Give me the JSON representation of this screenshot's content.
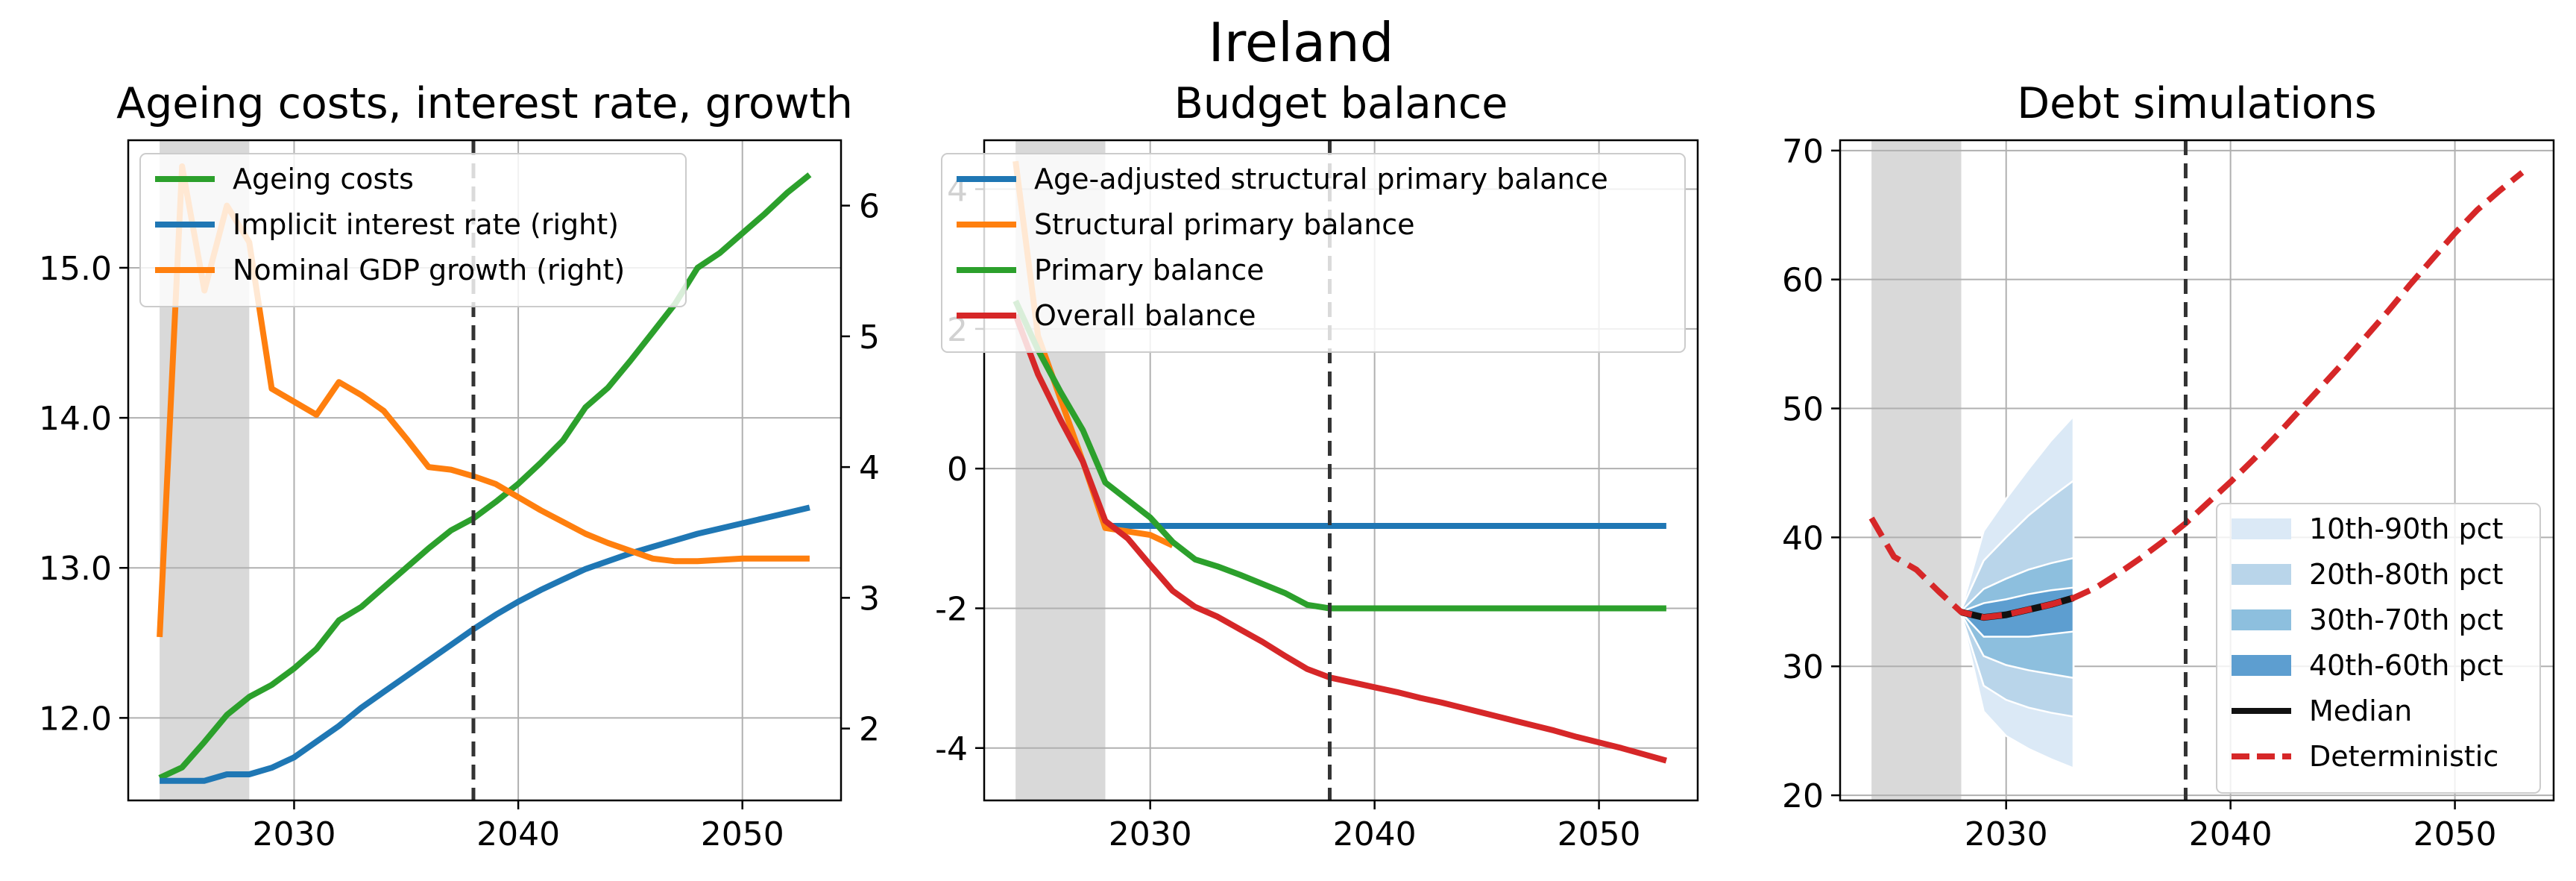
{
  "figure_title": "Ireland",
  "chart_data": [
    {
      "type": "line",
      "title": "Ageing costs, interest rate, growth",
      "xlim": [
        2022.6,
        2054.4
      ],
      "ylim": [
        11.45,
        15.85
      ],
      "y2lim": [
        1.45,
        6.5
      ],
      "xticks": [
        2030,
        2040,
        2050
      ],
      "yticks": [
        12.0,
        13.0,
        14.0,
        15.0
      ],
      "ytick_labels": [
        "12.0",
        "13.0",
        "14.0",
        "15.0"
      ],
      "y2ticks": [
        2,
        3,
        4,
        5,
        6
      ],
      "y2tick_labels": [
        "2",
        "3",
        "4",
        "5",
        "6"
      ],
      "shaded_x": [
        2024,
        2028
      ],
      "vline_x": 2038,
      "grid": true,
      "legend_position": "upper-left",
      "x": [
        2024,
        2025,
        2026,
        2027,
        2028,
        2029,
        2030,
        2031,
        2032,
        2033,
        2034,
        2035,
        2036,
        2037,
        2038,
        2039,
        2040,
        2041,
        2042,
        2043,
        2044,
        2045,
        2046,
        2047,
        2048,
        2049,
        2050,
        2051,
        2052,
        2053
      ],
      "series": [
        {
          "name": "Ageing costs",
          "axis": "left",
          "color": "#2ca02c",
          "values": [
            11.6,
            11.67,
            11.84,
            12.02,
            12.14,
            12.22,
            12.33,
            12.46,
            12.65,
            12.74,
            12.87,
            13.0,
            13.13,
            13.25,
            13.33,
            13.44,
            13.56,
            13.7,
            13.85,
            14.07,
            14.2,
            14.38,
            14.57,
            14.76,
            15.0,
            15.1,
            15.23,
            15.36,
            15.5,
            15.62
          ]
        },
        {
          "name": "Implicit interest rate (right)",
          "axis": "right",
          "color": "#1f77b4",
          "values": [
            1.6,
            1.6,
            1.6,
            1.65,
            1.65,
            1.7,
            1.78,
            1.9,
            2.02,
            2.16,
            2.28,
            2.4,
            2.52,
            2.64,
            2.76,
            2.87,
            2.97,
            3.06,
            3.14,
            3.22,
            3.28,
            3.34,
            3.39,
            3.44,
            3.49,
            3.53,
            3.57,
            3.61,
            3.65,
            3.69
          ]
        },
        {
          "name": "Nominal GDP growth (right)",
          "axis": "right",
          "color": "#ff7f0e",
          "values": [
            2.7,
            6.3,
            5.35,
            6.0,
            5.72,
            4.6,
            4.5,
            4.4,
            4.65,
            4.55,
            4.43,
            4.22,
            4.0,
            3.98,
            3.93,
            3.87,
            3.77,
            3.67,
            3.58,
            3.49,
            3.42,
            3.36,
            3.3,
            3.28,
            3.28,
            3.29,
            3.3,
            3.3,
            3.3,
            3.3
          ]
        }
      ]
    },
    {
      "type": "line",
      "title": "Budget balance",
      "xlim": [
        2022.6,
        2054.4
      ],
      "ylim": [
        -4.75,
        4.7
      ],
      "xticks": [
        2030,
        2040,
        2050
      ],
      "yticks": [
        -4,
        -2,
        0,
        2,
        4
      ],
      "ytick_labels": [
        "-4",
        "-2",
        "0",
        "2",
        "4"
      ],
      "shaded_x": [
        2024,
        2028
      ],
      "vline_x": 2038,
      "grid": true,
      "legend_position": "upper-left",
      "series": [
        {
          "name": "Age-adjusted structural primary balance",
          "color": "#1f77b4",
          "x": [
            2028,
            2029,
            2030,
            2031,
            2032,
            2033,
            2034,
            2035,
            2036,
            2037,
            2038,
            2039,
            2040,
            2041,
            2042,
            2043,
            2044,
            2045,
            2046,
            2047,
            2048,
            2049,
            2050,
            2051,
            2052,
            2053
          ],
          "values": [
            -0.82,
            -0.82,
            -0.82,
            -0.82,
            -0.82,
            -0.82,
            -0.82,
            -0.82,
            -0.82,
            -0.82,
            -0.82,
            -0.82,
            -0.82,
            -0.82,
            -0.82,
            -0.82,
            -0.82,
            -0.82,
            -0.82,
            -0.82,
            -0.82,
            -0.82,
            -0.82,
            -0.82,
            -0.82,
            -0.82
          ]
        },
        {
          "name": "Structural primary balance",
          "color": "#ff7f0e",
          "x": [
            2024,
            2025,
            2026,
            2027,
            2028,
            2029,
            2030,
            2031
          ],
          "values": [
            4.4,
            1.9,
            1.0,
            0.1,
            -0.85,
            -0.9,
            -0.95,
            -1.1
          ]
        },
        {
          "name": "Primary balance",
          "color": "#2ca02c",
          "x": [
            2024,
            2025,
            2026,
            2027,
            2028,
            2029,
            2030,
            2031,
            2032,
            2033,
            2034,
            2035,
            2036,
            2037,
            2038,
            2039,
            2040,
            2041,
            2042,
            2043,
            2044,
            2045,
            2046,
            2047,
            2048,
            2049,
            2050,
            2051,
            2052,
            2053
          ],
          "values": [
            2.4,
            1.7,
            1.1,
            0.55,
            -0.2,
            -0.45,
            -0.7,
            -1.05,
            -1.3,
            -1.4,
            -1.52,
            -1.65,
            -1.78,
            -1.95,
            -2.0,
            -2.0,
            -2.0,
            -2.0,
            -2.0,
            -2.0,
            -2.0,
            -2.0,
            -2.0,
            -2.0,
            -2.0,
            -2.0,
            -2.0,
            -2.0,
            -2.0,
            -2.0
          ]
        },
        {
          "name": "Overall balance",
          "color": "#d62728",
          "x": [
            2024,
            2025,
            2026,
            2027,
            2028,
            2029,
            2030,
            2031,
            2032,
            2033,
            2034,
            2035,
            2036,
            2037,
            2038,
            2039,
            2040,
            2041,
            2042,
            2043,
            2044,
            2045,
            2046,
            2047,
            2048,
            2049,
            2050,
            2051,
            2052,
            2053
          ],
          "values": [
            2.2,
            1.35,
            0.7,
            0.1,
            -0.75,
            -1.0,
            -1.38,
            -1.75,
            -1.98,
            -2.12,
            -2.3,
            -2.48,
            -2.68,
            -2.87,
            -2.99,
            -3.06,
            -3.13,
            -3.2,
            -3.28,
            -3.35,
            -3.43,
            -3.51,
            -3.59,
            -3.67,
            -3.75,
            -3.84,
            -3.92,
            -4.0,
            -4.09,
            -4.18
          ]
        }
      ]
    },
    {
      "type": "area",
      "title": "Debt simulations",
      "xlim": [
        2022.6,
        2054.4
      ],
      "ylim": [
        19.6,
        70.8
      ],
      "xticks": [
        2030,
        2040,
        2050
      ],
      "yticks": [
        20,
        30,
        40,
        50,
        60,
        70
      ],
      "ytick_labels": [
        "20",
        "30",
        "40",
        "50",
        "60",
        "70"
      ],
      "shaded_x": [
        2024,
        2028
      ],
      "vline_x": 2038,
      "grid": true,
      "legend_position": "lower-right",
      "fan_x": [
        2028,
        2029,
        2030,
        2031,
        2032,
        2033
      ],
      "fan_median": [
        34.2,
        33.8,
        34.0,
        34.4,
        34.8,
        35.3
      ],
      "fan_bands": [
        {
          "name": "10th-90th pct",
          "color": "#dbe9f6",
          "lower": [
            34.0,
            26.5,
            24.6,
            23.6,
            22.8,
            22.1
          ],
          "upper": [
            34.4,
            40.5,
            43.0,
            45.3,
            47.5,
            49.4
          ]
        },
        {
          "name": "20th-80th pct",
          "color": "#b9d5ea",
          "lower": [
            34.0,
            28.5,
            27.4,
            26.8,
            26.4,
            26.1
          ],
          "upper": [
            34.4,
            38.2,
            40.0,
            41.7,
            43.1,
            44.4
          ]
        },
        {
          "name": "30th-70th pct",
          "color": "#8dbfde",
          "lower": [
            34.1,
            30.8,
            30.1,
            29.7,
            29.4,
            29.1
          ],
          "upper": [
            34.3,
            36.0,
            36.8,
            37.5,
            38.0,
            38.4
          ]
        },
        {
          "name": "40th-60th pct",
          "color": "#5d9ed0",
          "lower": [
            34.15,
            32.3,
            32.3,
            32.3,
            32.5,
            32.7
          ],
          "upper": [
            34.25,
            34.9,
            35.2,
            35.6,
            35.9,
            36.1
          ]
        }
      ],
      "series": [
        {
          "name": "Median",
          "color": "#111111",
          "style": "solid"
        },
        {
          "name": "Deterministic",
          "color": "#d62728",
          "style": "dashed",
          "x": [
            2024,
            2025,
            2026,
            2027,
            2028,
            2029,
            2030,
            2031,
            2032,
            2033,
            2034,
            2035,
            2036,
            2037,
            2038,
            2039,
            2040,
            2041,
            2042,
            2043,
            2044,
            2045,
            2046,
            2047,
            2048,
            2049,
            2050,
            2051,
            2052,
            2053
          ],
          "values": [
            41.5,
            38.5,
            37.5,
            35.8,
            34.2,
            33.8,
            34.0,
            34.4,
            34.8,
            35.3,
            36.1,
            37.2,
            38.4,
            39.7,
            41.1,
            42.7,
            44.3,
            46.0,
            47.8,
            49.7,
            51.6,
            53.5,
            55.5,
            57.5,
            59.6,
            61.6,
            63.6,
            65.4,
            66.9,
            68.3
          ]
        }
      ]
    }
  ],
  "colors": {
    "axes_frame": "#000000",
    "grid": "#b0b0b0",
    "shade": "#d9d9d9",
    "vline": "#333333"
  }
}
